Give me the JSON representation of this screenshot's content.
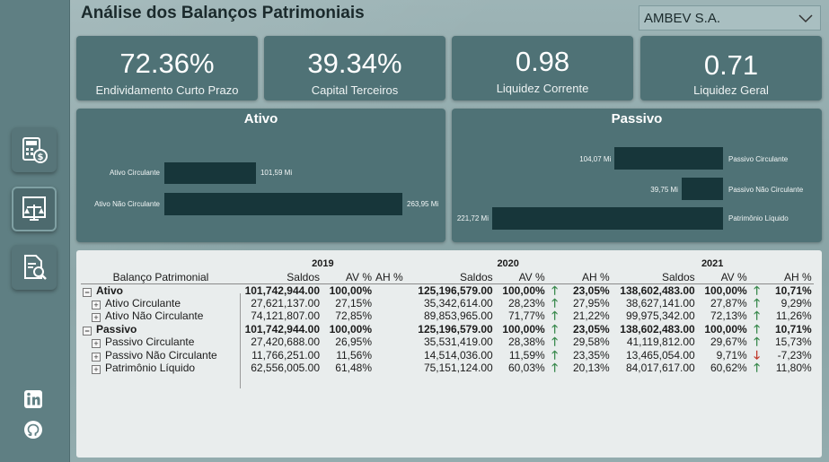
{
  "header": {
    "title": "Análise dos Balanços Patrimoniais"
  },
  "company_select": {
    "value": "AMBEV S.A."
  },
  "kpis": [
    {
      "value": "72.36%",
      "label": "Endividamento Curto Prazo"
    },
    {
      "value": "39.34%",
      "label": "Capital Terceiros"
    },
    {
      "value": "0.98",
      "label": "Liquidez Corrente"
    },
    {
      "value": "0.71",
      "label": "Liquidez Geral"
    }
  ],
  "ativo_chart": {
    "title": "Ativo",
    "items": [
      {
        "label": "Ativo Circulante",
        "value": 101.59,
        "value_label": "101,59 Mi"
      },
      {
        "label": "Ativo Não Circulante",
        "value": 263.95,
        "value_label": "263,95 Mi"
      }
    ]
  },
  "passivo_chart": {
    "title": "Passivo",
    "items": [
      {
        "label": "Passivo Circulante",
        "value": 104.07,
        "value_label": "104,07 Mi"
      },
      {
        "label": "Passivo Não Circulante",
        "value": 39.75,
        "value_label": "39,75 Mi"
      },
      {
        "label": "Patrimônio Líquido",
        "value": 221.72,
        "value_label": "221,72 Mi"
      }
    ]
  },
  "table": {
    "row_header": "Balanço Patrimonial",
    "years": [
      "2019",
      "2020",
      "2021"
    ],
    "col_saldos": "Saldos",
    "col_av": "AV %",
    "col_ah": "AH %",
    "rows": [
      {
        "label": "Ativo",
        "level": 0,
        "bold": true,
        "expander": "−",
        "y2019": [
          "101,742,944.00",
          "100,00%",
          ""
        ],
        "y2020": [
          "125,196,579.00",
          "100,00%",
          "23,05%"
        ],
        "a2020": "up",
        "y2021": [
          "138,602,483.00",
          "100,00%",
          "10,71%"
        ],
        "a2021": "up"
      },
      {
        "label": "Ativo Circulante",
        "level": 1,
        "bold": false,
        "expander": "+",
        "y2019": [
          "27,621,137.00",
          "27,15%",
          ""
        ],
        "y2020": [
          "35,342,614.00",
          "28,23%",
          "27,95%"
        ],
        "a2020": "up",
        "y2021": [
          "38,627,141.00",
          "27,87%",
          "9,29%"
        ],
        "a2021": "up"
      },
      {
        "label": "Ativo Não Circulante",
        "level": 1,
        "bold": false,
        "expander": "+",
        "y2019": [
          "74,121,807.00",
          "72,85%",
          ""
        ],
        "y2020": [
          "89,853,965.00",
          "71,77%",
          "21,22%"
        ],
        "a2020": "up",
        "y2021": [
          "99,975,342.00",
          "72,13%",
          "11,26%"
        ],
        "a2021": "up"
      },
      {
        "label": "Passivo",
        "level": 0,
        "bold": true,
        "expander": "−",
        "y2019": [
          "101,742,944.00",
          "100,00%",
          ""
        ],
        "y2020": [
          "125,196,579.00",
          "100,00%",
          "23,05%"
        ],
        "a2020": "up",
        "y2021": [
          "138,602,483.00",
          "100,00%",
          "10,71%"
        ],
        "a2021": "up"
      },
      {
        "label": "Passivo Circulante",
        "level": 1,
        "bold": false,
        "expander": "+",
        "y2019": [
          "27,420,688.00",
          "26,95%",
          ""
        ],
        "y2020": [
          "35,531,419.00",
          "28,38%",
          "29,58%"
        ],
        "a2020": "up",
        "y2021": [
          "41,119,812.00",
          "29,67%",
          "15,73%"
        ],
        "a2021": "up"
      },
      {
        "label": "Passivo Não Circulante",
        "level": 1,
        "bold": false,
        "expander": "+",
        "y2019": [
          "11,766,251.00",
          "11,56%",
          ""
        ],
        "y2020": [
          "14,514,036.00",
          "11,59%",
          "23,35%"
        ],
        "a2020": "up",
        "y2021": [
          "13,465,054.00",
          "9,71%",
          "-7,23%"
        ],
        "a2021": "down"
      },
      {
        "label": "Patrimônio Líquido",
        "level": 1,
        "bold": false,
        "expander": "+",
        "y2019": [
          "62,556,005.00",
          "61,48%",
          ""
        ],
        "y2020": [
          "75,151,124.00",
          "60,03%",
          "20,13%"
        ],
        "a2020": "up",
        "y2021": [
          "84,017,617.00",
          "60,62%",
          "11,80%"
        ],
        "a2021": "up"
      }
    ]
  },
  "icons": {
    "sidebar": [
      "calculator-money-icon",
      "balance-scale-icon",
      "document-search-icon"
    ],
    "social": [
      "linkedin-icon",
      "github-icon"
    ]
  },
  "colors": {
    "card": "#4f7276",
    "bar": "#17363a",
    "up": "#3b8a4f",
    "down": "#c0392b"
  }
}
